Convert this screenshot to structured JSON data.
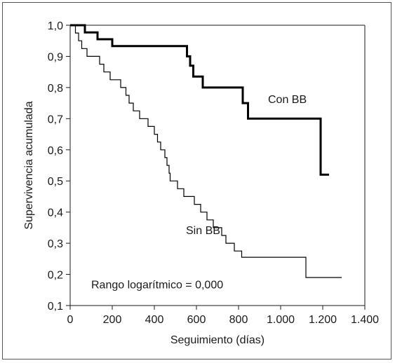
{
  "chart_data": {
    "type": "line",
    "step": true,
    "xlabel": "Seguimiento (días)",
    "ylabel": "Supervivencia acumulada",
    "xlim": [
      0,
      1400
    ],
    "ylim": [
      0.1,
      1.0
    ],
    "x_ticks": [
      0,
      200,
      400,
      600,
      800,
      1000,
      1200,
      1400
    ],
    "x_tick_labels": [
      "0",
      "200",
      "400",
      "600",
      "800",
      "1.000",
      "1.200",
      "1.400"
    ],
    "y_ticks": [
      0.1,
      0.2,
      0.3,
      0.4,
      0.5,
      0.6,
      0.7,
      0.8,
      0.9,
      1.0
    ],
    "y_tick_labels": [
      "0,1",
      "0,2",
      "0,3",
      "0,4",
      "0,5",
      "0,6",
      "0,7",
      "0,8",
      "0,9",
      "1,0"
    ],
    "grid": false,
    "series": [
      {
        "name": "Con BB",
        "color": "#000000",
        "line": "thick",
        "points": [
          [
            0,
            1.0
          ],
          [
            70,
            1.0
          ],
          [
            70,
            0.977
          ],
          [
            130,
            0.977
          ],
          [
            130,
            0.955
          ],
          [
            200,
            0.955
          ],
          [
            200,
            0.933
          ],
          [
            555,
            0.933
          ],
          [
            555,
            0.9
          ],
          [
            570,
            0.9
          ],
          [
            570,
            0.87
          ],
          [
            585,
            0.87
          ],
          [
            585,
            0.835
          ],
          [
            630,
            0.835
          ],
          [
            630,
            0.8
          ],
          [
            820,
            0.8
          ],
          [
            820,
            0.75
          ],
          [
            845,
            0.75
          ],
          [
            845,
            0.7
          ],
          [
            1190,
            0.7
          ],
          [
            1190,
            0.52
          ],
          [
            1230,
            0.52
          ]
        ]
      },
      {
        "name": "Sin BB",
        "color": "#000000",
        "line": "thin",
        "points": [
          [
            0,
            1.0
          ],
          [
            25,
            1.0
          ],
          [
            25,
            0.975
          ],
          [
            40,
            0.975
          ],
          [
            40,
            0.95
          ],
          [
            55,
            0.95
          ],
          [
            55,
            0.925
          ],
          [
            80,
            0.925
          ],
          [
            80,
            0.9
          ],
          [
            140,
            0.9
          ],
          [
            140,
            0.875
          ],
          [
            160,
            0.875
          ],
          [
            160,
            0.85
          ],
          [
            190,
            0.85
          ],
          [
            190,
            0.825
          ],
          [
            240,
            0.825
          ],
          [
            240,
            0.8
          ],
          [
            265,
            0.8
          ],
          [
            265,
            0.775
          ],
          [
            280,
            0.775
          ],
          [
            280,
            0.75
          ],
          [
            300,
            0.75
          ],
          [
            300,
            0.725
          ],
          [
            330,
            0.725
          ],
          [
            330,
            0.7
          ],
          [
            370,
            0.7
          ],
          [
            370,
            0.675
          ],
          [
            400,
            0.675
          ],
          [
            400,
            0.65
          ],
          [
            415,
            0.65
          ],
          [
            415,
            0.625
          ],
          [
            430,
            0.625
          ],
          [
            430,
            0.6
          ],
          [
            450,
            0.6
          ],
          [
            450,
            0.575
          ],
          [
            460,
            0.575
          ],
          [
            460,
            0.55
          ],
          [
            470,
            0.55
          ],
          [
            470,
            0.525
          ],
          [
            475,
            0.525
          ],
          [
            475,
            0.5
          ],
          [
            510,
            0.5
          ],
          [
            510,
            0.475
          ],
          [
            540,
            0.475
          ],
          [
            540,
            0.45
          ],
          [
            590,
            0.45
          ],
          [
            590,
            0.425
          ],
          [
            620,
            0.425
          ],
          [
            620,
            0.4
          ],
          [
            650,
            0.4
          ],
          [
            650,
            0.375
          ],
          [
            680,
            0.375
          ],
          [
            680,
            0.35
          ],
          [
            720,
            0.35
          ],
          [
            720,
            0.325
          ],
          [
            740,
            0.325
          ],
          [
            740,
            0.3
          ],
          [
            780,
            0.3
          ],
          [
            780,
            0.275
          ],
          [
            815,
            0.275
          ],
          [
            815,
            0.255
          ],
          [
            1120,
            0.255
          ],
          [
            1120,
            0.19
          ],
          [
            1290,
            0.19
          ]
        ]
      }
    ],
    "annotations": [
      {
        "text": "Con BB",
        "x": 940,
        "y": 0.75
      },
      {
        "text": "Sin BB",
        "x": 550,
        "y": 0.33
      },
      {
        "text": "Rango logarítmico = 0,000",
        "x": 100,
        "y": 0.155
      }
    ]
  }
}
